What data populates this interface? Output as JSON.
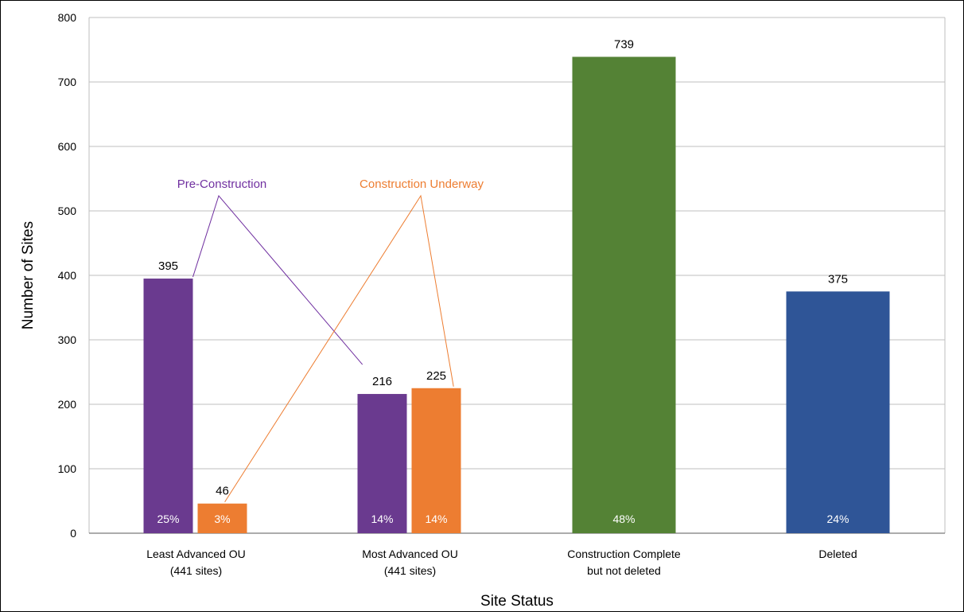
{
  "chart_data": {
    "type": "bar",
    "xlabel": "Site Status",
    "ylabel": "Number of Sites",
    "ylim": [
      0,
      800
    ],
    "yticks": [
      "0",
      "100",
      "200",
      "300",
      "400",
      "500",
      "600",
      "700",
      "800"
    ],
    "grid": true,
    "categories": [
      {
        "line1": "Least Advanced OU",
        "line2": "(441 sites)"
      },
      {
        "line1": "Most Advanced OU",
        "line2": "(441 sites)"
      },
      {
        "line1": "Construction Complete",
        "line2": "but not deleted"
      },
      {
        "line1": "Deleted",
        "line2": ""
      }
    ],
    "bars": [
      {
        "category": 0,
        "series": "Pre-Construction",
        "value": 395,
        "label": "395",
        "pct": "25%",
        "color": "#6a3a8f",
        "slot": "left"
      },
      {
        "category": 0,
        "series": "Construction Underway",
        "value": 46,
        "label": "46",
        "pct": "3%",
        "color": "#ed7d31",
        "slot": "right"
      },
      {
        "category": 1,
        "series": "Pre-Construction",
        "value": 216,
        "label": "216",
        "pct": "14%",
        "color": "#6a3a8f",
        "slot": "left"
      },
      {
        "category": 1,
        "series": "Construction Underway",
        "value": 225,
        "label": "225",
        "pct": "14%",
        "color": "#ed7d31",
        "slot": "right"
      },
      {
        "category": 2,
        "series": "Construction Complete",
        "value": 739,
        "label": "739",
        "pct": "48%",
        "color": "#548235",
        "slot": "wide"
      },
      {
        "category": 3,
        "series": "Deleted",
        "value": 375,
        "label": "375",
        "pct": "24%",
        "color": "#2f5597",
        "slot": "wide"
      }
    ],
    "annotations": [
      {
        "text": "Pre-Construction",
        "color": "#7030a0",
        "points_to": [
          "Least Advanced OU",
          "Most Advanced OU"
        ]
      },
      {
        "text": "Construction Underway",
        "color": "#ed7d31",
        "points_to": [
          "Least Advanced OU",
          "Most Advanced OU"
        ]
      }
    ],
    "colors": {
      "text": "#000000",
      "grid": "#bfbfbf",
      "small_label": "#595959"
    }
  }
}
